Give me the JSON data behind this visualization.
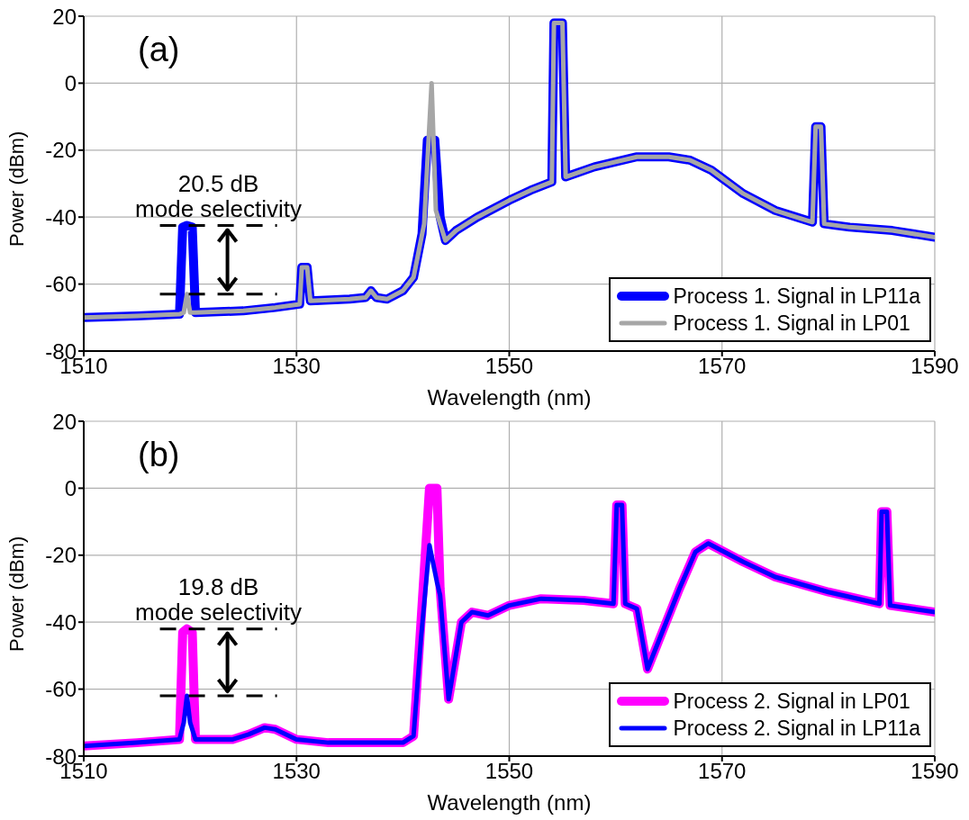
{
  "chart_data": [
    {
      "type": "line",
      "title": "(a)",
      "xlabel": "Wavelength (nm)",
      "ylabel": "Power (dBm)",
      "xlim": [
        1510,
        1590
      ],
      "xticks": [
        1510,
        1530,
        1550,
        1570,
        1590
      ],
      "ylim": [
        -80,
        20
      ],
      "yticks": [
        -80,
        -60,
        -40,
        -20,
        0,
        20
      ],
      "grid": true,
      "legend": "bottom right",
      "marker": "none",
      "line_style": "solid",
      "annotations": [
        {
          "text": "20.5 dB\nmode selectivity",
          "x": 1519.7,
          "y": -42.5
        }
      ],
      "series": [
        {
          "name": "Process 1. Signal in LP11a",
          "color": "#0000ff",
          "x": [
            1510,
            1515,
            1519,
            1519.3,
            1519.7,
            1520.2,
            1520.5,
            1525,
            1528,
            1530.3,
            1530.5,
            1531,
            1531.3,
            1535,
            1536.5,
            1537,
            1537.5,
            1538.5,
            1540,
            1541,
            1541.8,
            1542.3,
            1543,
            1543.5,
            1544,
            1545,
            1547,
            1550,
            1552,
            1554,
            1554.2,
            1555,
            1555.3,
            1558,
            1562,
            1565,
            1567,
            1569,
            1572,
            1575,
            1578.5,
            1578.8,
            1579.3,
            1579.6,
            1582,
            1586,
            1590
          ],
          "values": [
            -70,
            -69.5,
            -69,
            -43,
            -42.5,
            -43,
            -68.5,
            -68,
            -67,
            -66,
            -55,
            -55,
            -65,
            -64.5,
            -64,
            -62,
            -64,
            -64.5,
            -62,
            -58,
            -45,
            -17,
            -17,
            -40,
            -47,
            -44,
            -40,
            -35,
            -32,
            -29.5,
            18,
            18,
            -28,
            -25,
            -22,
            -22,
            -23,
            -26,
            -33,
            -38,
            -41.5,
            -13,
            -13,
            -42,
            -43,
            -44,
            -46
          ]
        },
        {
          "name": "Process 1. Signal in LP01",
          "color": "#a6a6a6",
          "x": [
            1510,
            1515,
            1519,
            1519.4,
            1519.7,
            1520,
            1520.5,
            1525,
            1528,
            1530.3,
            1530.5,
            1531,
            1531.3,
            1535,
            1536.5,
            1537,
            1537.5,
            1538.5,
            1540,
            1541,
            1542,
            1542.7,
            1543.1,
            1543.5,
            1544,
            1545,
            1547,
            1550,
            1552,
            1554,
            1554.2,
            1555,
            1555.3,
            1558,
            1562,
            1565,
            1567,
            1569,
            1572,
            1575,
            1578.5,
            1578.8,
            1579.3,
            1579.6,
            1582,
            1586,
            1590
          ],
          "values": [
            -70,
            -69.5,
            -69,
            -68.5,
            -63,
            -68.5,
            -68.5,
            -68,
            -67,
            -66,
            -55,
            -55,
            -65,
            -64.5,
            -64,
            -62,
            -64,
            -64.5,
            -62,
            -58,
            -42,
            0,
            -38,
            -42,
            -47,
            -44,
            -40,
            -35,
            -32,
            -29.5,
            18,
            18,
            -28,
            -25,
            -22,
            -22,
            -23,
            -26,
            -33,
            -38,
            -41.5,
            -13,
            -13,
            -42,
            -43,
            -44,
            -46
          ]
        }
      ]
    },
    {
      "type": "line",
      "title": "(b)",
      "xlabel": "Wavelength (nm)",
      "ylabel": "Power (dBm)",
      "xlim": [
        1510,
        1590
      ],
      "xticks": [
        1510,
        1530,
        1550,
        1570,
        1590
      ],
      "ylim": [
        -80,
        20
      ],
      "yticks": [
        -80,
        -60,
        -40,
        -20,
        0,
        20
      ],
      "grid": true,
      "legend": "bottom right",
      "marker": "none",
      "line_style": "solid",
      "annotations": [
        {
          "text": "19.8 dB\nmode selectivity",
          "x": 1519.7,
          "y": -42
        }
      ],
      "series": [
        {
          "name": "Process 2. Signal in LP01",
          "color": "#ff00ff",
          "x": [
            1510,
            1515,
            1519,
            1519.3,
            1519.7,
            1520.2,
            1520.5,
            1524,
            1525.5,
            1527,
            1528,
            1530,
            1533,
            1537,
            1540,
            1541,
            1541.7,
            1542.5,
            1543.2,
            1543.5,
            1544.3,
            1545.5,
            1546.5,
            1548,
            1550,
            1553,
            1557,
            1559.8,
            1560.1,
            1560.6,
            1560.9,
            1562,
            1563,
            1566,
            1567.5,
            1568.7,
            1572,
            1575,
            1580,
            1584.8,
            1585,
            1585.5,
            1585.8,
            1590
          ],
          "values": [
            -77,
            -76,
            -75,
            -43,
            -42,
            -43,
            -75,
            -75,
            -73.5,
            -71.5,
            -72,
            -75,
            -76,
            -76,
            -76,
            -74,
            -40,
            0,
            0,
            -30,
            -63,
            -40,
            -37,
            -38,
            -35,
            -33,
            -33.5,
            -34.5,
            -5,
            -5,
            -34.5,
            -36,
            -54,
            -30,
            -19,
            -16.5,
            -22,
            -26.5,
            -31,
            -34.5,
            -7,
            -7,
            -35,
            -37
          ]
        },
        {
          "name": "Process 2. Signal in LP11a",
          "color": "#0000ff",
          "x": [
            1510,
            1515,
            1519,
            1519.4,
            1519.7,
            1520,
            1520.5,
            1524,
            1525.5,
            1527,
            1528,
            1530,
            1533,
            1537,
            1540,
            1541,
            1541.7,
            1542.5,
            1543.2,
            1543.5,
            1544.3,
            1545.5,
            1546.5,
            1548,
            1550,
            1553,
            1557,
            1559.8,
            1560.1,
            1560.6,
            1560.9,
            1562,
            1563,
            1566,
            1567.5,
            1568.7,
            1572,
            1575,
            1580,
            1584.8,
            1585,
            1585.5,
            1585.8,
            1590
          ],
          "values": [
            -77,
            -76,
            -75,
            -70,
            -62,
            -70,
            -75,
            -75,
            -73.5,
            -71.5,
            -72,
            -75,
            -76,
            -76,
            -76,
            -74,
            -45,
            -17,
            -28,
            -32,
            -63,
            -40,
            -37,
            -38,
            -35,
            -33,
            -33.5,
            -34.5,
            -5,
            -5,
            -34.5,
            -36,
            -54,
            -30,
            -19,
            -16.5,
            -22,
            -26.5,
            -31,
            -34.5,
            -7,
            -7,
            -35,
            -37
          ]
        }
      ]
    }
  ]
}
